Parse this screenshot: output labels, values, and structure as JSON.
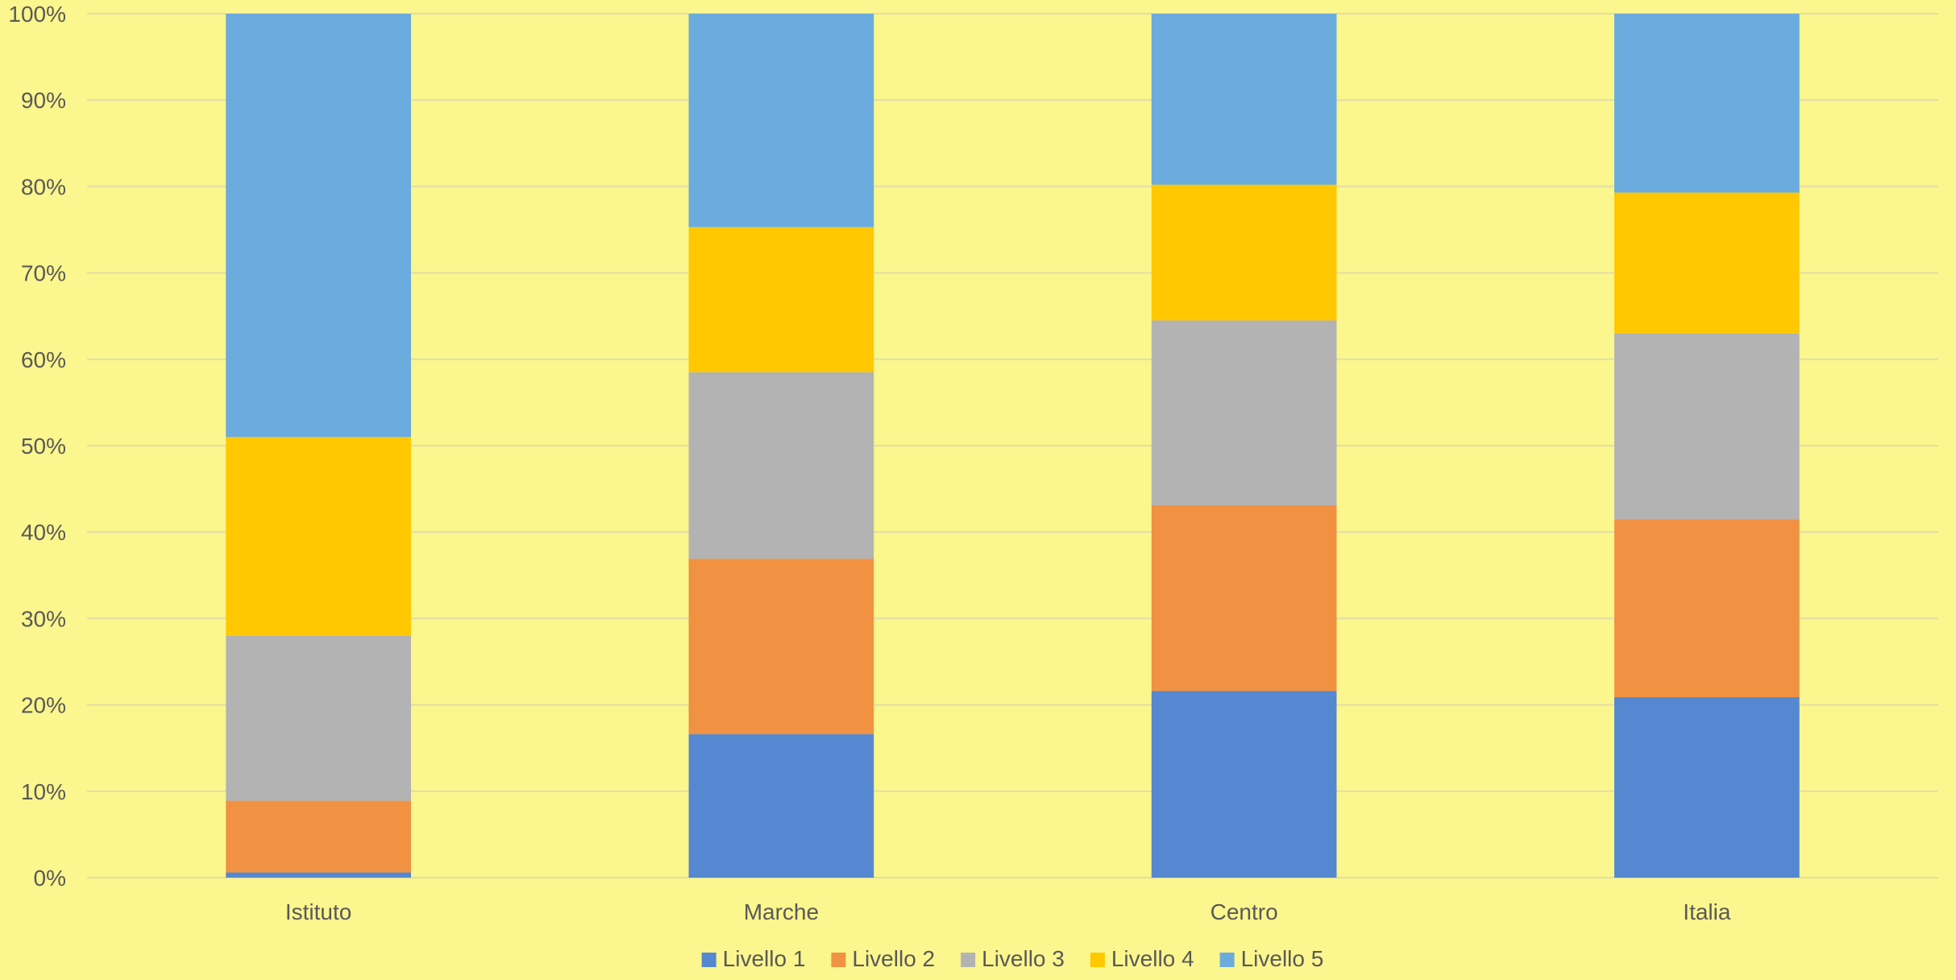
{
  "chart_data": {
    "type": "bar",
    "stacked": true,
    "percent": true,
    "categories": [
      "Istituto",
      "Marche",
      "Centro",
      "Italia"
    ],
    "series": [
      {
        "name": "Livello 1",
        "color": "#5588D0",
        "values": [
          0.6,
          16.6,
          21.6,
          20.9
        ]
      },
      {
        "name": "Livello 2",
        "color": "#F19142",
        "values": [
          8.3,
          20.3,
          21.5,
          20.6
        ]
      },
      {
        "name": "Livello 3",
        "color": "#B3B3B3",
        "values": [
          19.1,
          21.6,
          21.4,
          21.5
        ]
      },
      {
        "name": "Livello 4",
        "color": "#FFC800",
        "values": [
          23.0,
          16.8,
          15.7,
          16.3
        ]
      },
      {
        "name": "Livello 5",
        "color": "#6BABDD",
        "values": [
          49.0,
          24.7,
          19.8,
          20.7
        ]
      }
    ],
    "y_ticks": [
      "0%",
      "10%",
      "20%",
      "30%",
      "40%",
      "50%",
      "60%",
      "70%",
      "80%",
      "90%",
      "100%"
    ],
    "ylim": [
      0,
      100
    ],
    "grid": true,
    "legend_position": "bottom",
    "title": "",
    "xlabel": "",
    "ylabel": ""
  }
}
